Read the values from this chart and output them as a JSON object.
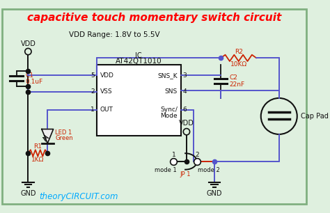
{
  "title": "capacitive touch momentary switch circuit",
  "title_color": "#ff0000",
  "title_fontsize": 11,
  "bg_color": "#dff0df",
  "border_color": "#80b080",
  "vdd_range_text": "VDD Range: 1.8V to 5.5V",
  "ic_label": "IC",
  "ic_name": "AT42QT1010",
  "watermark": "theoryCIRCUIT.com",
  "watermark_color": "#00aaff",
  "blue": "#5555cc",
  "red": "#cc2200",
  "black": "#111111",
  "lred": "#cc2200"
}
